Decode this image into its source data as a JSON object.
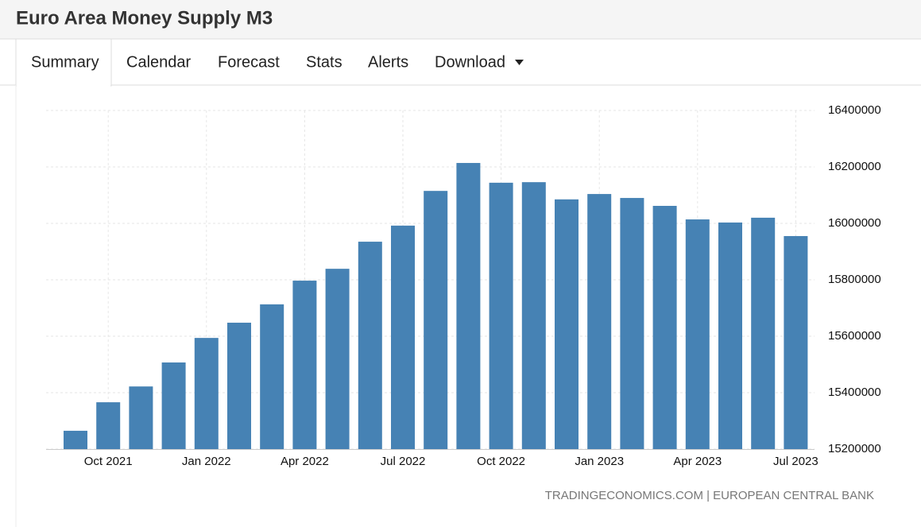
{
  "header": {
    "title": "Euro Area Money Supply M3"
  },
  "tabs": [
    "Summary",
    "Calendar",
    "Forecast",
    "Stats",
    "Alerts",
    "Download"
  ],
  "chart_data": {
    "type": "bar",
    "categories": [
      null,
      "Oct 2021",
      null,
      null,
      "Jan 2022",
      null,
      null,
      "Apr 2022",
      null,
      null,
      "Jul 2022",
      null,
      null,
      "Oct 2022",
      null,
      null,
      "Jan 2023",
      null,
      null,
      "Apr 2023",
      null,
      null,
      "Jul 2023"
    ],
    "values": [
      15265000,
      15366000,
      15422000,
      15507000,
      15594000,
      15648000,
      15713000,
      15797000,
      15839000,
      15935000,
      15992000,
      16115000,
      16214000,
      16144000,
      16146000,
      16085000,
      16104000,
      16090000,
      16062000,
      16014000,
      16003000,
      16020000,
      15955000
    ],
    "color": "#4682b4",
    "ylim": [
      15200000,
      16400000
    ],
    "yticks": [
      15200000,
      15400000,
      15600000,
      15800000,
      16000000,
      16200000,
      16400000
    ],
    "grid": true,
    "source": "TRADINGECONOMICS.COM | EUROPEAN CENTRAL BANK"
  }
}
